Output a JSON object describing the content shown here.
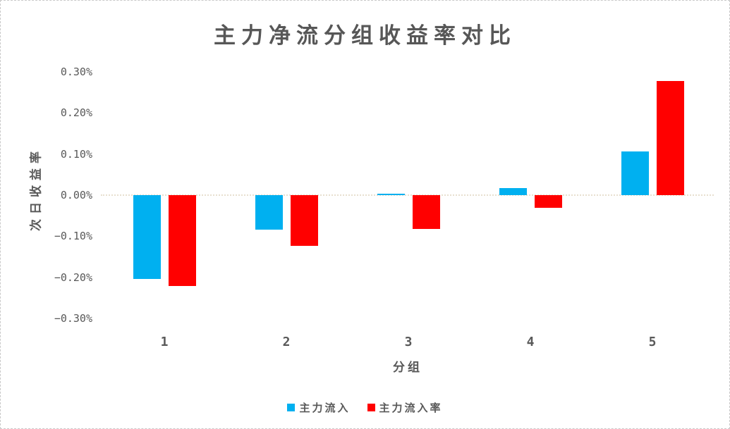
{
  "chart_data": {
    "type": "bar",
    "title": "主力净流分组收益率对比",
    "xlabel": "分组",
    "ylabel": "次日收益率",
    "categories": [
      "1",
      "2",
      "3",
      "4",
      "5"
    ],
    "series": [
      {
        "name": "主力流入",
        "color": "#00B0F0",
        "values": [
          -0.204,
          -0.084,
          0.003,
          0.017,
          0.107
        ]
      },
      {
        "name": "主力流入率",
        "color": "#FF0000",
        "values": [
          -0.221,
          -0.123,
          -0.083,
          -0.031,
          0.278
        ]
      }
    ],
    "value_unit": "percent",
    "ylim": [
      -0.3,
      0.3
    ],
    "y_ticks": [
      "0.30%",
      "0.20%",
      "0.10%",
      "0.00%",
      "−0.10%",
      "−0.20%",
      "−0.30%"
    ],
    "y_tick_values": [
      0.3,
      0.2,
      0.1,
      0,
      -0.1,
      -0.2,
      -0.3
    ],
    "legend_position": "bottom",
    "grid": false
  },
  "colors": {
    "series_blue": "#00B0F0",
    "series_red": "#FF0000",
    "text": "#595959",
    "zero_line": "#e7dfcf",
    "border": "#c9c9c9",
    "background": "#ffffff"
  }
}
